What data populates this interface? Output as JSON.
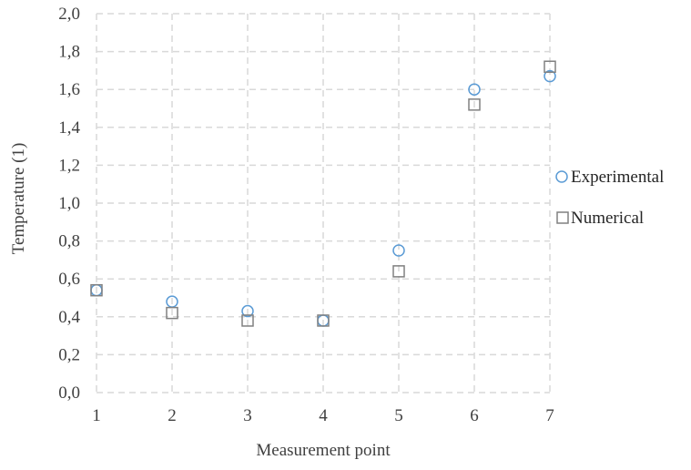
{
  "chart_data": {
    "type": "scatter",
    "title": "",
    "xlabel": "Measurement point",
    "ylabel": "Temperature (1)",
    "xlim": [
      1,
      7
    ],
    "ylim": [
      0,
      2
    ],
    "x_ticks": [
      "1",
      "2",
      "3",
      "4",
      "5",
      "6",
      "7"
    ],
    "y_ticks": [
      "0,0",
      "0,2",
      "0,4",
      "0,6",
      "0,8",
      "1,0",
      "1,2",
      "1,4",
      "1,6",
      "1,8",
      "2,0"
    ],
    "grid": true,
    "grid_style": "dashed",
    "legend_position": "right",
    "series": [
      {
        "name": "Experimental",
        "marker": "circle",
        "color": "#5B9BD5",
        "x": [
          1,
          2,
          3,
          4,
          5,
          6,
          7
        ],
        "y": [
          0.54,
          0.48,
          0.43,
          0.38,
          0.75,
          1.6,
          1.67
        ]
      },
      {
        "name": "Numerical",
        "marker": "square",
        "color": "#808080",
        "x": [
          1,
          2,
          3,
          4,
          5,
          6,
          7
        ],
        "y": [
          0.54,
          0.42,
          0.38,
          0.38,
          0.64,
          1.52,
          1.72
        ]
      }
    ]
  }
}
